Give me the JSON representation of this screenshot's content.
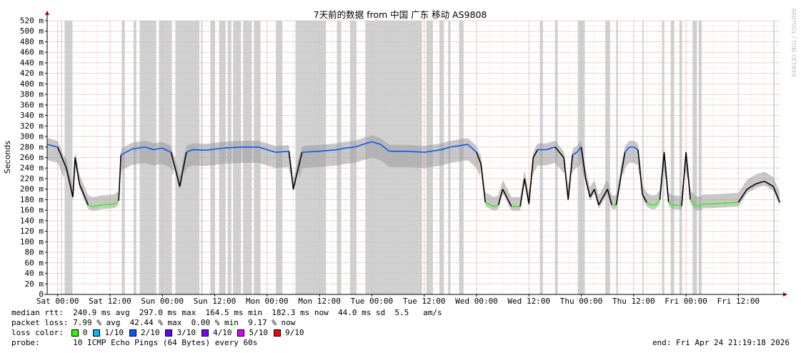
{
  "chart_data": {
    "type": "line",
    "title": "7天前的数据 from 中国 广东 移动 AS9808",
    "ylabel": "Seconds",
    "side_label": "RRDTOOL / TOBI OETIKER",
    "ylim": [
      0,
      0.52
    ],
    "y_ticks": [
      {
        "value": 0.52,
        "label": "520 m"
      },
      {
        "value": 0.5,
        "label": "500 m"
      },
      {
        "value": 0.48,
        "label": "480 m"
      },
      {
        "value": 0.46,
        "label": "460 m"
      },
      {
        "value": 0.44,
        "label": "440 m"
      },
      {
        "value": 0.42,
        "label": "420 m"
      },
      {
        "value": 0.4,
        "label": "400 m"
      },
      {
        "value": 0.38,
        "label": "380 m"
      },
      {
        "value": 0.36,
        "label": "360 m"
      },
      {
        "value": 0.34,
        "label": "340 m"
      },
      {
        "value": 0.32,
        "label": "320 m"
      },
      {
        "value": 0.3,
        "label": "300 m"
      },
      {
        "value": 0.28,
        "label": "280 m"
      },
      {
        "value": 0.26,
        "label": "260 m"
      },
      {
        "value": 0.24,
        "label": "240 m"
      },
      {
        "value": 0.22,
        "label": "220 m"
      },
      {
        "value": 0.2,
        "label": "200 m"
      },
      {
        "value": 0.18,
        "label": "180 m"
      },
      {
        "value": 0.16,
        "label": "160 m"
      },
      {
        "value": 0.14,
        "label": "140 m"
      },
      {
        "value": 0.12,
        "label": "120 m"
      },
      {
        "value": 0.1,
        "label": "100 m"
      },
      {
        "value": 0.08,
        "label": "80 m"
      },
      {
        "value": 0.06,
        "label": "60 m"
      },
      {
        "value": 0.04,
        "label": "40 m"
      },
      {
        "value": 0.02,
        "label": "20 m"
      },
      {
        "value": 0,
        "label": "0"
      }
    ],
    "x_range_hours": [
      -2.4,
      165.6
    ],
    "x_ticks": [
      {
        "hour": 0,
        "label": "Sat 00:00"
      },
      {
        "hour": 12,
        "label": "Sat 12:00"
      },
      {
        "hour": 24,
        "label": "Sun 00:00"
      },
      {
        "hour": 36,
        "label": "Sun 12:00"
      },
      {
        "hour": 48,
        "label": "Mon 00:00"
      },
      {
        "hour": 60,
        "label": "Mon 12:00"
      },
      {
        "hour": 72,
        "label": "Tue 00:00"
      },
      {
        "hour": 84,
        "label": "Tue 12:00"
      },
      {
        "hour": 96,
        "label": "Wed 00:00"
      },
      {
        "hour": 108,
        "label": "Wed 12:00"
      },
      {
        "hour": 120,
        "label": "Thu 00:00"
      },
      {
        "hour": 132,
        "label": "Thu 12:00"
      },
      {
        "hour": 144,
        "label": "Fri 00:00"
      },
      {
        "hour": 156,
        "label": "Fri 12:00"
      }
    ],
    "median_series_approx": {
      "x_hour": [
        -2.3,
        0,
        2,
        3.5,
        4,
        5,
        6,
        7,
        8,
        9,
        10,
        13,
        14,
        14.5,
        17,
        20,
        22,
        24,
        26,
        28,
        29.5,
        30,
        31,
        34,
        38,
        42,
        46,
        50,
        53,
        54,
        56,
        60,
        64,
        66,
        68,
        70,
        72,
        74,
        76,
        80,
        84,
        88,
        90,
        94,
        96,
        97,
        98,
        100,
        101,
        102,
        104,
        106,
        107,
        108,
        109,
        110,
        112,
        114,
        116,
        117,
        118,
        119,
        120,
        121,
        122,
        123,
        124,
        126,
        127,
        128,
        130,
        131,
        132,
        133,
        134,
        135,
        136,
        137,
        138,
        139,
        140,
        141,
        142,
        143,
        144,
        145,
        146,
        147,
        148,
        150,
        152,
        154,
        156,
        158,
        160,
        162,
        164,
        165.5
      ],
      "y": [
        0.285,
        0.28,
        0.24,
        0.185,
        0.26,
        0.21,
        0.19,
        0.17,
        0.167,
        0.168,
        0.17,
        0.172,
        0.178,
        0.265,
        0.276,
        0.28,
        0.275,
        0.278,
        0.27,
        0.205,
        0.27,
        0.272,
        0.275,
        0.274,
        0.278,
        0.28,
        0.28,
        0.27,
        0.272,
        0.2,
        0.27,
        0.272,
        0.275,
        0.278,
        0.28,
        0.285,
        0.29,
        0.285,
        0.272,
        0.272,
        0.27,
        0.275,
        0.28,
        0.285,
        0.27,
        0.248,
        0.175,
        0.167,
        0.17,
        0.2,
        0.167,
        0.167,
        0.22,
        0.172,
        0.26,
        0.275,
        0.275,
        0.28,
        0.26,
        0.18,
        0.265,
        0.27,
        0.28,
        0.22,
        0.185,
        0.2,
        0.17,
        0.2,
        0.17,
        0.17,
        0.27,
        0.28,
        0.28,
        0.275,
        0.19,
        0.175,
        0.17,
        0.17,
        0.18,
        0.27,
        0.175,
        0.17,
        0.17,
        0.168,
        0.27,
        0.18,
        0.17,
        0.167,
        0.172,
        0.172,
        0.173,
        0.174,
        0.175,
        0.2,
        0.21,
        0.215,
        0.205,
        0.175
      ]
    },
    "loss_bands_hours": [
      [
        0.8,
        1.0
      ],
      [
        1.6,
        3.4
      ],
      [
        14.7,
        15.4
      ],
      [
        17.4,
        18.0
      ],
      [
        18.8,
        22.6
      ],
      [
        23.2,
        26.2
      ],
      [
        27.0,
        32.5
      ],
      [
        32.9,
        33.2
      ],
      [
        35.0,
        36.0
      ],
      [
        37.0,
        38.5
      ],
      [
        39.0,
        39.8
      ],
      [
        40.2,
        42.0
      ],
      [
        42.5,
        44.5
      ],
      [
        45.0,
        46.5
      ],
      [
        50.0,
        51.5
      ],
      [
        54.5,
        61.5
      ],
      [
        64.0,
        65.0
      ],
      [
        67.0,
        68.5
      ],
      [
        70.5,
        83.5
      ],
      [
        84.5,
        86.0
      ],
      [
        87.5,
        88.5
      ],
      [
        89.5,
        90.0
      ],
      [
        92.0,
        93.0
      ],
      [
        110.5,
        111.2
      ],
      [
        114.0,
        114.6
      ],
      [
        119.2,
        120.8
      ],
      [
        125.5,
        126.6
      ],
      [
        128.0,
        128.4
      ],
      [
        134.0,
        134.3
      ],
      [
        138.5,
        139.0
      ],
      [
        140.5,
        141.3
      ],
      [
        142.5,
        143.1
      ],
      [
        145.5,
        146.5
      ],
      [
        146.9,
        147.6
      ],
      [
        164.0,
        164.3
      ]
    ]
  },
  "stats": {
    "median_rtt": "median rtt:  240.9 ms avg  297.0 ms max  164.5 ms min  182.3 ms now  44.0 ms sd  5.5   am/s",
    "packet_loss": "packet loss: 7.99 % avg  42.44 % max  0.00 % min  9.17 % now",
    "loss_color_label": "loss color:",
    "probe": "probe:       10 ICMP Echo Pings (64 Bytes) every 60s",
    "end": "end: Fri Apr 24 21:19:18 2026"
  },
  "legend": [
    {
      "label": "0",
      "color": "#26ff00"
    },
    {
      "label": "1/10",
      "color": "#00b8ff"
    },
    {
      "label": "2/10",
      "color": "#0059ff"
    },
    {
      "label": "3/10",
      "color": "#5e00ff"
    },
    {
      "label": "4/10",
      "color": "#7e00ff"
    },
    {
      "label": "5/10",
      "color": "#dd00ff"
    },
    {
      "label": "9/10",
      "color": "#ff0000"
    }
  ]
}
